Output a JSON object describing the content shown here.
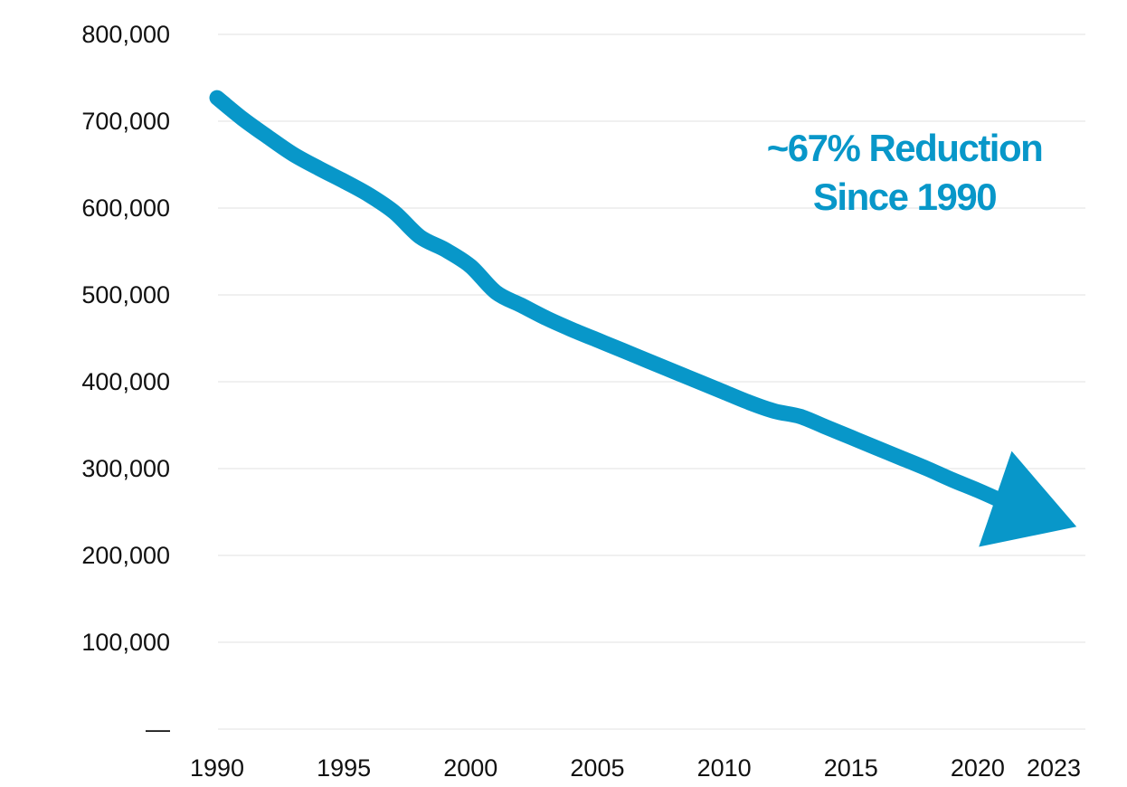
{
  "chart_data": {
    "type": "line",
    "title": "",
    "xlabel": "",
    "ylabel": "",
    "xlim": [
      1990,
      2023
    ],
    "ylim": [
      0,
      800000
    ],
    "grid": true,
    "yticks": [
      {
        "value": 0,
        "label": "—"
      },
      {
        "value": 100000,
        "label": "100,000"
      },
      {
        "value": 200000,
        "label": "200,000"
      },
      {
        "value": 300000,
        "label": "300,000"
      },
      {
        "value": 400000,
        "label": "400,000"
      },
      {
        "value": 500000,
        "label": "500,000"
      },
      {
        "value": 600000,
        "label": "600,000"
      },
      {
        "value": 700000,
        "label": "700,000"
      },
      {
        "value": 800000,
        "label": "800,000"
      }
    ],
    "xticks": [
      {
        "value": 1990,
        "label": "1990"
      },
      {
        "value": 1995,
        "label": "1995"
      },
      {
        "value": 2000,
        "label": "2000"
      },
      {
        "value": 2005,
        "label": "2005"
      },
      {
        "value": 2010,
        "label": "2010"
      },
      {
        "value": 2015,
        "label": "2015"
      },
      {
        "value": 2020,
        "label": "2020"
      },
      {
        "value": 2023,
        "label": "2023"
      }
    ],
    "series": [
      {
        "color": "#0897c9",
        "x": [
          1990,
          1991,
          1992,
          1993,
          1994,
          1995,
          1996,
          1997,
          1998,
          1999,
          2000,
          2001,
          2002,
          2003,
          2004,
          2005,
          2006,
          2007,
          2008,
          2009,
          2010,
          2011,
          2012,
          2013,
          2014,
          2015,
          2016,
          2017,
          2018,
          2019,
          2020,
          2021
        ],
        "y": [
          727000,
          703000,
          682000,
          662000,
          646000,
          631000,
          615000,
          595000,
          567000,
          552000,
          533000,
          503000,
          488000,
          473000,
          460000,
          448000,
          436000,
          424000,
          412000,
          400000,
          388000,
          376000,
          366000,
          360000,
          348000,
          336000,
          324000,
          312000,
          300000,
          287000,
          275000,
          262000
        ]
      }
    ],
    "arrowhead": {
      "tip": [
        2023.9,
        233000
      ],
      "color": "#0897c9"
    },
    "annotation": {
      "lines": [
        "~67% Reduction",
        "Since 1990"
      ],
      "color": "#0897c9"
    },
    "gridline_color": "#e6e6e6"
  }
}
